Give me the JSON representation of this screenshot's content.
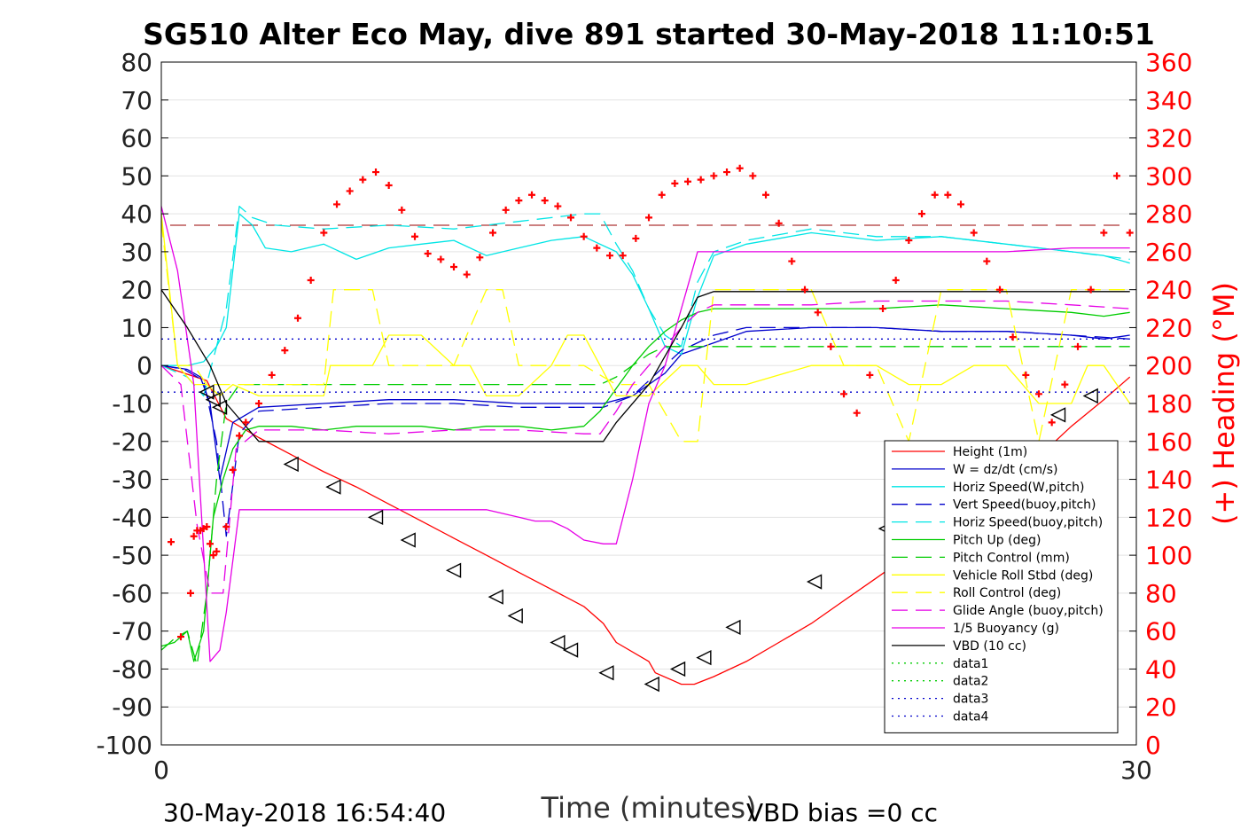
{
  "chart_data": {
    "type": "line",
    "title": "SG510 Alter Eco May, dive 891 started 30-May-2018 11:10:51",
    "xlabel": "Time (minutes)",
    "ylabel": "",
    "y2label": "(+) Heading (°M)",
    "xlim": [
      0,
      30
    ],
    "ylim": [
      -100,
      80
    ],
    "y2lim": [
      0,
      360
    ],
    "x_ticks": [
      "0",
      "30"
    ],
    "y_ticks": [
      "80",
      "70",
      "60",
      "50",
      "40",
      "30",
      "20",
      "10",
      "0",
      "-10",
      "-20",
      "-30",
      "-40",
      "-50",
      "-60",
      "-70",
      "-80",
      "-90",
      "-100"
    ],
    "y2_ticks": [
      "360",
      "340",
      "320",
      "300",
      "280",
      "260",
      "240",
      "220",
      "200",
      "180",
      "160",
      "140",
      "120",
      "100",
      "80",
      "60",
      "40",
      "20",
      "0"
    ],
    "grid": true,
    "legend_position": "lower-right",
    "series": [
      {
        "name": "Height (1m)",
        "color": "#ff0000",
        "style": "solid",
        "x": [
          0,
          1.4,
          2,
          3,
          4,
          5,
          6,
          7,
          8,
          9,
          10,
          11,
          12,
          13,
          13.6,
          14,
          15,
          15.2,
          16,
          16.4,
          17,
          18,
          19,
          20,
          21,
          22,
          23,
          24,
          25,
          26,
          27,
          28,
          29,
          29.8
        ],
        "y": [
          0,
          -4,
          -14,
          -19,
          -23.5,
          -28,
          -32,
          -36.5,
          -41,
          -45.5,
          -50,
          -54.5,
          -59,
          -63.5,
          -68,
          -73,
          -78,
          -81,
          -84,
          -84,
          -82,
          -78,
          -73,
          -68,
          -62,
          -56,
          -50,
          -43,
          -37,
          -31,
          -24,
          -16,
          -9,
          -3
        ]
      },
      {
        "name": "W = dz/dt (cm/s)",
        "color": "#0000cc",
        "style": "solid",
        "x": [
          0,
          0.8,
          1.2,
          1.5,
          1.8,
          2.2,
          3,
          5,
          7,
          9,
          11,
          13,
          13.6,
          14.5,
          15,
          15.5,
          16,
          17,
          18,
          20,
          22,
          24,
          26,
          28,
          29,
          29.8
        ],
        "y": [
          0,
          -1,
          -3,
          -10,
          -30,
          -15,
          -11,
          -10,
          -9,
          -9,
          -10,
          -10,
          -10,
          -8,
          -5,
          -2,
          3,
          6,
          9,
          10,
          10,
          9,
          9,
          8,
          7,
          8
        ]
      },
      {
        "name": "Horiz Speed(W,pitch)",
        "color": "#00e5e5",
        "style": "solid",
        "x": [
          0,
          0.8,
          1.3,
          1.7,
          2,
          2.4,
          2.8,
          3.2,
          4,
          5,
          6,
          7,
          8,
          9,
          10,
          11,
          12,
          13,
          14,
          14.5,
          15,
          15.5,
          16,
          16.5,
          17,
          18,
          20,
          22,
          24,
          26,
          28,
          29,
          29.8
        ],
        "y": [
          0,
          0,
          1,
          5,
          10,
          40,
          37,
          31,
          30,
          32,
          28,
          31,
          32,
          33,
          29,
          31,
          33,
          34,
          30,
          24,
          15,
          5,
          3,
          18,
          29,
          32,
          35,
          33,
          34,
          32,
          30,
          29,
          27
        ]
      },
      {
        "name": "Vert Speed(buoy,pitch)",
        "color": "#0000cc",
        "style": "dashed",
        "x": [
          0,
          0.7,
          1.3,
          1.7,
          2,
          2.4,
          3,
          5,
          7,
          9,
          11,
          13,
          13.6,
          14.5,
          15,
          15.5,
          16,
          17,
          18,
          20,
          22,
          24,
          26,
          28,
          29.8
        ],
        "y": [
          0,
          -1,
          -4,
          -20,
          -45,
          -18,
          -12,
          -11,
          -10,
          -10,
          -11,
          -11,
          -11,
          -8,
          -4,
          0,
          4,
          8,
          10,
          10,
          10,
          9,
          9,
          8,
          7
        ]
      },
      {
        "name": "Horiz Speed(buoy,pitch)",
        "color": "#00e5e5",
        "style": "dashed",
        "x": [
          0,
          0.8,
          1.3,
          1.7,
          2,
          2.4,
          2.8,
          3.5,
          5,
          7,
          9,
          11,
          13,
          13.5,
          14,
          14.5,
          15,
          15.5,
          16,
          16.5,
          17,
          18,
          20,
          22,
          24,
          26,
          28,
          29.8
        ],
        "y": [
          0,
          -3,
          -8,
          5,
          15,
          42,
          39,
          37,
          36,
          37,
          36,
          38,
          40,
          40,
          32,
          25,
          15,
          8,
          5,
          22,
          30,
          33,
          36,
          34,
          34,
          32,
          30,
          28
        ]
      },
      {
        "name": "Pitch Up (deg)",
        "color": "#00cc00",
        "style": "solid",
        "x": [
          0,
          0.4,
          0.8,
          1,
          1.3,
          1.6,
          1.9,
          2.2,
          2.6,
          3,
          4,
          5,
          6,
          7,
          8,
          9,
          10,
          11,
          12,
          13,
          13.5,
          14,
          14.5,
          15,
          15.5,
          16,
          16.5,
          17,
          18,
          20,
          22,
          24,
          26,
          28,
          29,
          29.8
        ],
        "y": [
          -74,
          -73,
          -70,
          -78,
          -70,
          -40,
          -30,
          -22,
          -17,
          -16,
          -16,
          -17,
          -16,
          -16,
          -16,
          -17,
          -16,
          -16,
          -17,
          -16,
          -12,
          -6,
          0,
          5,
          9,
          12,
          14,
          15,
          15,
          15,
          15,
          16,
          15,
          14,
          13,
          14
        ]
      },
      {
        "name": "Pitch Control (mm)",
        "color": "#00cc00",
        "style": "dashed",
        "x": [
          0,
          0.4,
          0.8,
          1.1,
          1.4,
          1.7,
          2,
          2.4,
          3,
          13.5,
          14,
          14.5,
          15,
          15.5,
          16,
          16.5,
          17,
          29.8
        ],
        "y": [
          -75,
          -72,
          -70,
          -79,
          -60,
          -30,
          -10,
          -5,
          -5,
          -5,
          -3,
          0,
          3,
          5,
          5,
          5,
          5,
          5
        ]
      },
      {
        "name": "Vehicle Roll Stbd (deg)",
        "color": "#ffff00",
        "style": "solid",
        "x": [
          0,
          0.5,
          1,
          1.4,
          1.8,
          2.2,
          3,
          4,
          5,
          5.2,
          6,
          6.5,
          7,
          8,
          9,
          9.5,
          10,
          11,
          12,
          12.5,
          13,
          13.5,
          14,
          15,
          16,
          16.5,
          17,
          18,
          20,
          21,
          22,
          23,
          24,
          25,
          26,
          27,
          28,
          28.5,
          29,
          29.8
        ],
        "y": [
          40,
          0,
          -5,
          -5,
          -8,
          -5,
          -8,
          -8,
          -8,
          0,
          0,
          0,
          8,
          8,
          0,
          0,
          -8,
          -8,
          0,
          8,
          8,
          0,
          -8,
          -8,
          0,
          0,
          -5,
          -5,
          0,
          0,
          0,
          -5,
          -5,
          0,
          0,
          -10,
          -10,
          0,
          0,
          -10
        ]
      },
      {
        "name": "Roll Control (deg)",
        "color": "#ffff00",
        "style": "dashed",
        "x": [
          0,
          0.5,
          1,
          1.4,
          1.8,
          2.2,
          3,
          5,
          5.3,
          6,
          6.5,
          7,
          8,
          9,
          10,
          10.5,
          11,
          12,
          13,
          14,
          15,
          16,
          16.5,
          17,
          18,
          20,
          21,
          22,
          23,
          24,
          25,
          26,
          27,
          28,
          29,
          29.8
        ],
        "y": [
          38,
          0,
          0,
          -5,
          -5,
          -5,
          -5,
          -5,
          20,
          20,
          20,
          0,
          0,
          0,
          20,
          20,
          0,
          0,
          0,
          -5,
          -5,
          -20,
          -20,
          20,
          20,
          20,
          0,
          0,
          -20,
          20,
          20,
          20,
          -20,
          20,
          20,
          20
        ]
      },
      {
        "name": "Glide Angle (buoy,pitch)",
        "color": "#e600e6",
        "style": "dashed",
        "x": [
          0,
          0.6,
          1.1,
          1.5,
          1.9,
          2.3,
          3,
          5,
          7,
          9,
          11,
          13,
          13.5,
          14,
          14.5,
          15,
          15.5,
          16,
          16.5,
          17,
          18,
          20,
          22,
          24,
          26,
          28,
          29.8
        ],
        "y": [
          0,
          -5,
          -42,
          -60,
          -60,
          -22,
          -17,
          -17,
          -18,
          -17,
          -17,
          -18,
          -18,
          -12,
          -5,
          0,
          5,
          10,
          14,
          16,
          16,
          16,
          17,
          17,
          17,
          16,
          15
        ]
      },
      {
        "name": "1/5 Buoyancy (g)",
        "color": "#e600e6",
        "style": "solid",
        "x": [
          0,
          0.5,
          1,
          1.5,
          1.8,
          2,
          2.4,
          3,
          5,
          7,
          9,
          10,
          11,
          11.5,
          12,
          12.5,
          13,
          13.6,
          14,
          14.5,
          15,
          15.5,
          16,
          16.5,
          17,
          18,
          20,
          22,
          24,
          26,
          28,
          29.8
        ],
        "y": [
          42,
          25,
          -5,
          -78,
          -75,
          -65,
          -38,
          -38,
          -38,
          -38,
          -38,
          -38,
          -40,
          -41,
          -41,
          -43,
          -46,
          -47,
          -47,
          -30,
          -10,
          0,
          15,
          30,
          30,
          30,
          30,
          30,
          30,
          30,
          31,
          31
        ]
      },
      {
        "name": "VBD (10 cc)",
        "color": "#000000",
        "style": "solid",
        "x": [
          0,
          0.8,
          1.5,
          2,
          3,
          13.6,
          14,
          15,
          16,
          16.5,
          17,
          29.8
        ],
        "y": [
          20,
          10,
          0,
          -10,
          -20,
          -20,
          -15,
          -5,
          10,
          18,
          19.5,
          19.5
        ]
      },
      {
        "name": "data1",
        "color": "#00cc00",
        "style": "dotted",
        "x": [],
        "y": []
      },
      {
        "name": "data2",
        "color": "#00cc00",
        "style": "dotted",
        "x": [],
        "y": []
      },
      {
        "name": "data3",
        "color": "#0000cc",
        "style": "dotted",
        "x": [
          0,
          29.8
        ],
        "y": [
          7,
          7
        ]
      },
      {
        "name": "data4",
        "color": "#0000cc",
        "style": "dotted",
        "x": [
          0,
          29.8
        ],
        "y": [
          -7,
          -7
        ]
      }
    ],
    "reference_lines": [
      {
        "type": "horizontal",
        "y": 37,
        "color": "#990000",
        "style": "dashed"
      }
    ],
    "markers": {
      "triangles": {
        "color": "#000000",
        "points": [
          [
            1.4,
            -7
          ],
          [
            1.6,
            -9
          ],
          [
            1.8,
            -11
          ],
          [
            4,
            -26
          ],
          [
            5.3,
            -32
          ],
          [
            6.6,
            -40
          ],
          [
            7.6,
            -46
          ],
          [
            9,
            -54
          ],
          [
            10.3,
            -61
          ],
          [
            10.9,
            -66
          ],
          [
            12.2,
            -73
          ],
          [
            12.6,
            -75
          ],
          [
            13.7,
            -81
          ],
          [
            15.1,
            -84
          ],
          [
            15.9,
            -80
          ],
          [
            16.7,
            -77
          ],
          [
            17.6,
            -69
          ],
          [
            20.1,
            -57
          ],
          [
            22.3,
            -43
          ],
          [
            22.9,
            -40
          ],
          [
            27.6,
            -13
          ],
          [
            28.6,
            -8
          ]
        ]
      },
      "heading": {
        "color": "#ff0000",
        "axis": "right",
        "x": [
          0.3,
          0.6,
          0.9,
          1.0,
          1.1,
          1.2,
          1.3,
          1.4,
          1.5,
          1.6,
          1.7,
          2.0,
          2.2,
          2.4,
          2.6,
          3.0,
          3.4,
          3.8,
          4.2,
          4.6,
          5,
          5.4,
          5.8,
          6.2,
          6.6,
          7,
          7.4,
          7.8,
          8.2,
          8.6,
          9,
          9.4,
          9.8,
          10.2,
          10.6,
          11,
          11.4,
          11.8,
          12.2,
          12.6,
          13,
          13.4,
          13.8,
          14.2,
          14.6,
          15,
          15.4,
          15.8,
          16.2,
          16.6,
          17,
          17.4,
          17.8,
          18.2,
          18.6,
          19,
          19.4,
          19.8,
          20.2,
          20.6,
          21,
          21.4,
          21.8,
          22.2,
          22.6,
          23,
          23.4,
          23.8,
          24.2,
          24.6,
          25,
          25.4,
          25.8,
          26.2,
          26.6,
          27,
          27.4,
          27.8,
          28.2,
          28.6,
          29,
          29.4,
          29.8
        ],
        "y": [
          107,
          57,
          80,
          110,
          113,
          113,
          114,
          115,
          106,
          100,
          102,
          115,
          145,
          163,
          170,
          180,
          195,
          208,
          225,
          245,
          270,
          285,
          292,
          298,
          302,
          295,
          282,
          268,
          259,
          256,
          252,
          248,
          257,
          270,
          282,
          287,
          290,
          287,
          284,
          278,
          268,
          262,
          258,
          258,
          267,
          278,
          290,
          296,
          297,
          298,
          300,
          302,
          304,
          300,
          290,
          275,
          255,
          240,
          228,
          210,
          185,
          175,
          195,
          230,
          245,
          266,
          280,
          290,
          290,
          285,
          270,
          255,
          240,
          215,
          195,
          185,
          170,
          190,
          210,
          240,
          270,
          300,
          270
        ]
      }
    }
  },
  "footer": {
    "timestamp": "30-May-2018 16:54:40",
    "vbd_bias": "VBD bias =0 cc"
  }
}
